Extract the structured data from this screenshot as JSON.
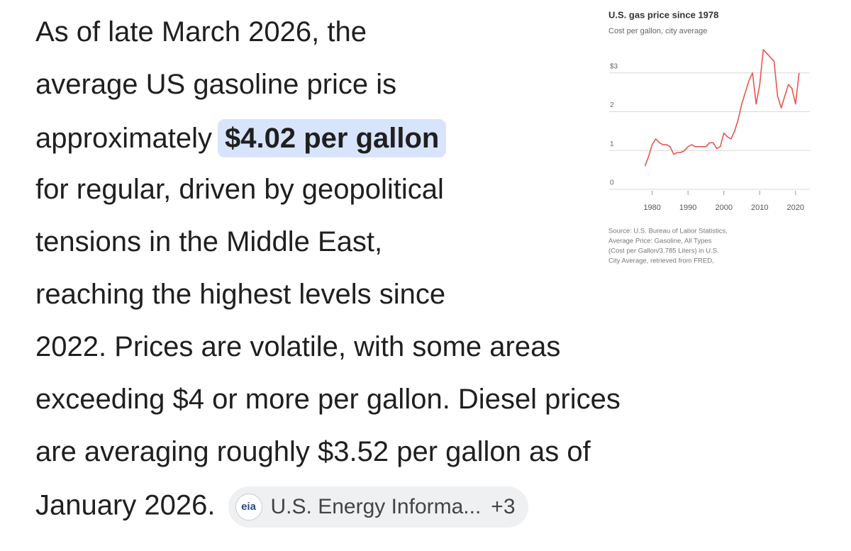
{
  "answer": {
    "lines": [
      "As of late March 2026, the",
      "average US gasoline price is",
      "approximately",
      "for regular, driven by geopolitical",
      "tensions in the Middle East,",
      "reaching the highest levels since",
      "2022. Prices are volatile, with some areas",
      "exceeding $4 or more per gallon. Diesel prices",
      "are averaging roughly $3.52 per gallon as of",
      "January 2026."
    ],
    "highlight": "$4.02 per gallon",
    "source_chip": {
      "icon": "eia",
      "label": "U.S. Energy Informa...",
      "more": "+3"
    }
  },
  "chart_data": {
    "type": "line",
    "title": "U.S. gas price since 1978",
    "subtitle": "Cost per gallon, city average",
    "x": [
      1978,
      1979,
      1980,
      1981,
      1982,
      1983,
      1984,
      1985,
      1986,
      1987,
      1988,
      1989,
      1990,
      1991,
      1992,
      1993,
      1994,
      1995,
      1996,
      1997,
      1998,
      1999,
      2000,
      2001,
      2002,
      2003,
      2004,
      2005,
      2006,
      2007,
      2008,
      2009,
      2010,
      2011,
      2012,
      2013,
      2014,
      2015,
      2016,
      2017,
      2018,
      2019,
      2020,
      2021
    ],
    "values": [
      0.6,
      0.85,
      1.15,
      1.3,
      1.2,
      1.15,
      1.15,
      1.1,
      0.9,
      0.95,
      0.95,
      1.0,
      1.1,
      1.15,
      1.1,
      1.1,
      1.1,
      1.1,
      1.2,
      1.2,
      1.05,
      1.1,
      1.45,
      1.35,
      1.3,
      1.5,
      1.8,
      2.2,
      2.5,
      2.8,
      3.0,
      2.2,
      2.7,
      3.6,
      3.5,
      3.4,
      3.3,
      2.4,
      2.1,
      2.4,
      2.7,
      2.6,
      2.2,
      3.0
    ],
    "color": "#e8564f",
    "xlim": [
      1968,
      2024
    ],
    "xticks": [
      1980,
      1990,
      2000,
      2010,
      2020
    ],
    "ylim": [
      0,
      3.8
    ],
    "yticks": [
      0,
      1,
      2,
      {
        "value": 3,
        "label": "$3"
      }
    ],
    "grid": true,
    "source": [
      "Source: U.S. Bureau of Labor Statistics,",
      "Average Price: Gasoline, All Types",
      "(Cost per Gallon/3.785 Liters) in U.S.",
      "City Average, retrieved from FRED,"
    ]
  }
}
